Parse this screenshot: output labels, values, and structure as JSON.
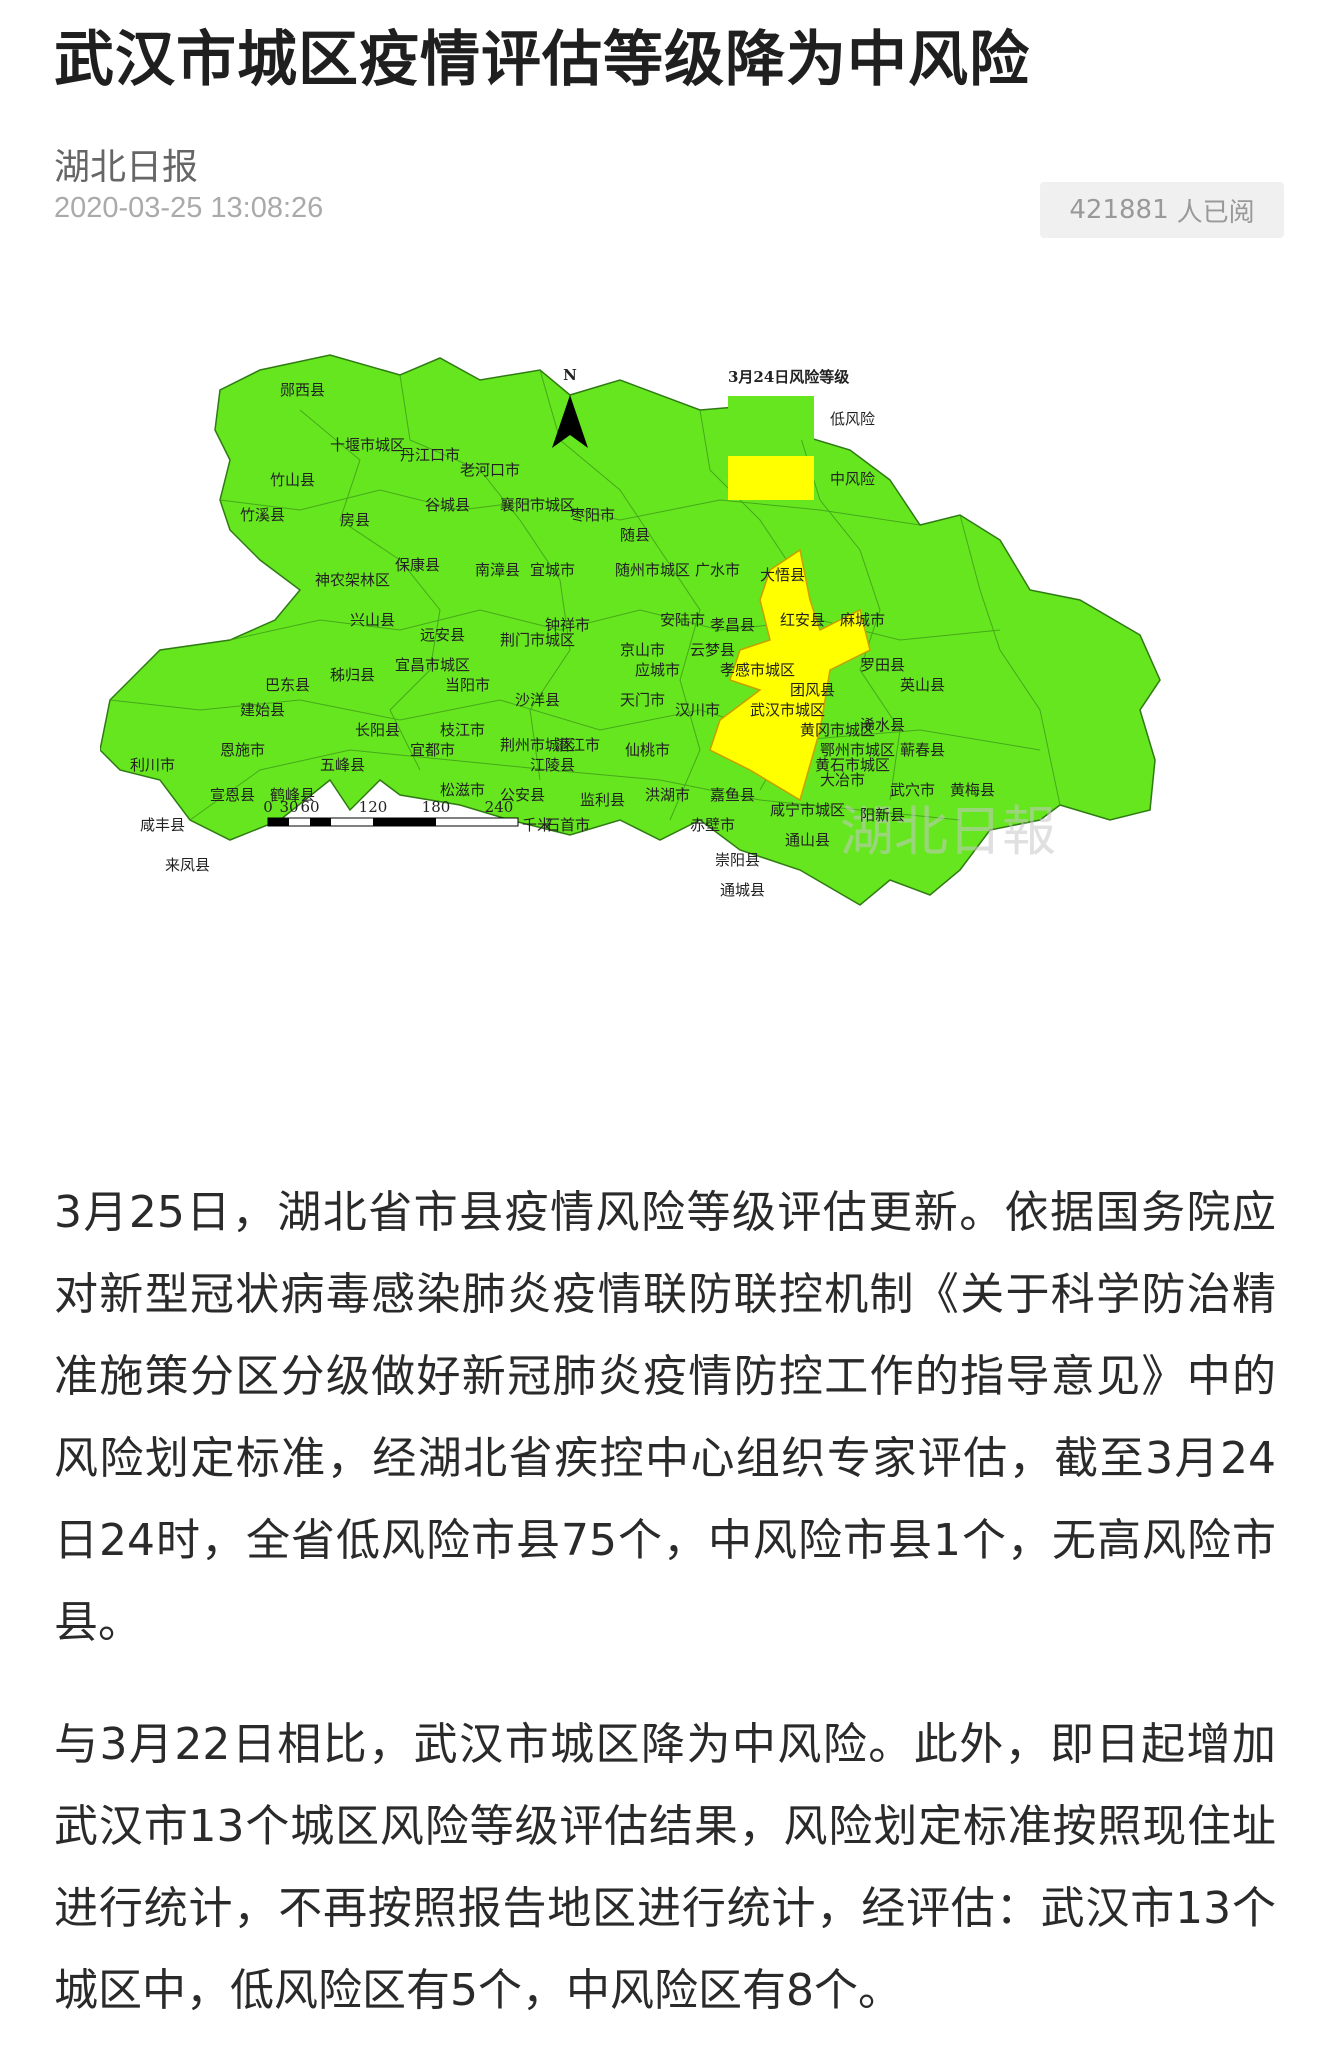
{
  "article": {
    "title": "武汉市城区疫情评估等级降为中风险",
    "source": "湖北日报",
    "published": "2020-03-25 13:08:26",
    "read_count": "421881",
    "read_suffix": "人已阅"
  },
  "map": {
    "north": "N",
    "legend_title": "3月24日风险等级",
    "legend_low": "低风险",
    "legend_mid": "中风险",
    "scale_ticks": [
      "0",
      "30",
      "60",
      "120",
      "180",
      "240"
    ],
    "scale_unit": "千米",
    "watermark": "湖北日報",
    "colors": {
      "low": "#66e61e",
      "mid": "#ffff00",
      "border": "#2f7a14"
    },
    "labels": [
      "郧西县",
      "十堰市城区",
      "丹江口市",
      "老河口市",
      "竹山县",
      "竹溪县",
      "房县",
      "谷城县",
      "襄阳市城区",
      "枣阳市",
      "随县",
      "保康县",
      "南漳县",
      "宜城市",
      "随州市城区",
      "广水市",
      "大悟县",
      "神农架林区",
      "兴山县",
      "远安县",
      "钟祥市",
      "安陆市",
      "孝昌县",
      "红安县",
      "麻城市",
      "荆门市城区",
      "京山市",
      "云梦县",
      "应城市",
      "孝感市城区",
      "罗田县",
      "英山县",
      "巴东县",
      "秭归县",
      "宜昌市城区",
      "当阳市",
      "沙洋县",
      "天门市",
      "汉川市",
      "武汉市城区",
      "团风县",
      "建始县",
      "恩施市",
      "长阳县",
      "枝江市",
      "荆州市城区",
      "潜江市",
      "仙桃市",
      "黄冈市城区",
      "浠水县",
      "蕲春县",
      "利川市",
      "五峰县",
      "宜都市",
      "鄂州市城区",
      "黄石市城区",
      "大冶市",
      "武穴市",
      "黄梅县",
      "宣恩县",
      "鹤峰县",
      "松滋市",
      "公安县",
      "江陵县",
      "监利县",
      "洪湖市",
      "嘉鱼县",
      "咸宁市城区",
      "阳新县",
      "咸丰县",
      "石首市",
      "赤壁市",
      "通山县",
      "来凤县",
      "崇阳县",
      "通城县"
    ]
  },
  "paragraphs": [
    "3月25日，湖北省市县疫情风险等级评估更新。依据国务院应对新型冠状病毒感染肺炎疫情联防联控机制《关于科学防治精准施策分区分级做好新冠肺炎疫情防控工作的指导意见》中的风险划定标准，经湖北省疾控中心组织专家评估，截至3月24日24时，全省低风险市县75个，中风险市县1个，无高风险市县。",
    "与3月22日相比，武汉市城区降为中风险。此外，即日起增加武汉市13个城区风险等级评估结果，风险划定标准按照现住址进行统计，不再按照报告地区进行统计，经评估：武汉市13个城区中，低风险区有5个，中风险区有8个。"
  ]
}
